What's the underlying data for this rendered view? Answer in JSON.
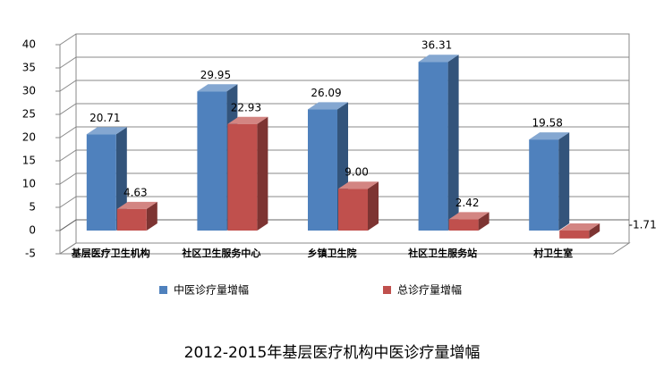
{
  "chart_data": {
    "type": "bar3d",
    "title": "2012-2015年基层医疗机构中医诊疗量增幅",
    "categories": [
      "基层医疗卫生机构",
      "社区卫生服务中心",
      "乡镇卫生院",
      "社区卫生服务站",
      "村卫生室"
    ],
    "series": [
      {
        "name": "中医诊疗量增幅",
        "color": "#4f81bd",
        "values": [
          20.71,
          29.95,
          26.09,
          36.31,
          19.58
        ],
        "value_labels": [
          "20.71",
          "29.95",
          "26.09",
          "36.31",
          "19.58"
        ]
      },
      {
        "name": "总诊疗量增幅",
        "color": "#c0504d",
        "values": [
          4.63,
          22.93,
          9,
          2.42,
          -1.71
        ],
        "value_labels": [
          "4.63",
          "22.93",
          "9.00",
          "2.42",
          "-1.71"
        ]
      }
    ],
    "ylim": [
      -5,
      40
    ],
    "yticks": [
      -5,
      0,
      5,
      10,
      15,
      20,
      25,
      30,
      35,
      40
    ],
    "grid": true,
    "legend": "bottom"
  }
}
